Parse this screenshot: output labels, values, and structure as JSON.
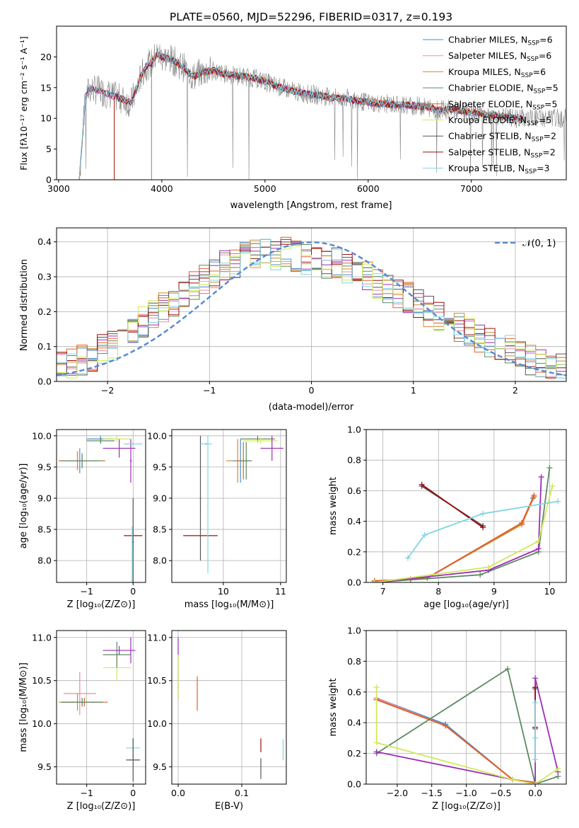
{
  "title": "PLATE=0560, MJD=52296, FIBERID=0317, z=0.193",
  "models": [
    {
      "name": "Chabrier MILES",
      "n": "6",
      "color": "#4a8ec8"
    },
    {
      "name": "Salpeter MILES",
      "n": "6",
      "color": "#e88aa6"
    },
    {
      "name": "Kroupa MILES",
      "n": "6",
      "color": "#d0892e"
    },
    {
      "name": "Chabrier ELODIE",
      "n": "5",
      "color": "#5d8a63"
    },
    {
      "name": "Salpeter ELODIE",
      "n": "5",
      "color": "#e0602a"
    },
    {
      "name": "Kroupa ELODIE",
      "n": "5",
      "color": "#9b2fb4"
    },
    {
      "name": "Chabrier STELIB",
      "n": "2",
      "color": "#555555"
    },
    {
      "name": "Salpeter STELIB",
      "n": "2",
      "color": "#9b0d0d"
    },
    {
      "name": "Kroupa STELIB",
      "n": "3",
      "color": "#7fd6e0"
    }
  ],
  "extra_colors": {
    "kroupa_elodie_legend": "#d2e85a",
    "gaussian": "#5a8ad0",
    "data": "#888888"
  },
  "chart_data": [
    {
      "type": "line",
      "id": "spectrum",
      "xlabel": "wavelength [Angstrom, rest frame]",
      "ylabel": "Flux [fλ10⁻¹⁷ erg cm⁻² s⁻¹ A⁻¹]",
      "xlim": [
        2980,
        7920
      ],
      "ylim": [
        0,
        25
      ],
      "xticks": [
        "3000",
        "4000",
        "5000",
        "6000",
        "7000"
      ],
      "yticks": [
        "0",
        "5",
        "10",
        "15",
        "20"
      ],
      "continuum": {
        "x": [
          3200,
          3260,
          3300,
          3400,
          3500,
          3600,
          3700,
          3750,
          3800,
          3850,
          3900,
          3950,
          4000,
          4100,
          4200,
          4300,
          4400,
          4500,
          4600,
          4700,
          4800,
          4900,
          5000,
          5100,
          5200,
          5300,
          5400,
          5500,
          5600,
          5700,
          5800,
          5900,
          6000,
          6100,
          6200,
          6300,
          6400,
          6500,
          6600,
          6700,
          6800,
          6900,
          7000,
          7100,
          7200,
          7300,
          7400
        ],
        "y": [
          0,
          13.5,
          14.8,
          14.5,
          13.8,
          13.2,
          12.5,
          14.5,
          17,
          18.5,
          19,
          20.5,
          20,
          19.5,
          18.5,
          16.8,
          17.5,
          17.8,
          17.2,
          17,
          16.8,
          16.5,
          16,
          15.3,
          14.8,
          14.3,
          14,
          13.8,
          13.5,
          13.3,
          13.2,
          12.8,
          12.6,
          12.4,
          12.3,
          12.2,
          12.1,
          12,
          11.7,
          11.3,
          11.5,
          11.2,
          11,
          10.8,
          10.5,
          10.3,
          10
        ]
      },
      "model_cutoffs": [
        3200,
        3200,
        3540,
        3900,
        3200,
        3200,
        3200,
        3540,
        3200
      ]
    },
    {
      "type": "line",
      "id": "residual-histogram",
      "xlabel": "(data-model)/error",
      "ylabel": "Normed distribution",
      "xlim": [
        -2.5,
        2.5
      ],
      "ylim": [
        0,
        0.44
      ],
      "xticks": [
        "−2",
        "−1",
        "0",
        "1",
        "2"
      ],
      "yticks": [
        "0.0",
        "0.1",
        "0.2",
        "0.3",
        "0.4"
      ],
      "legend": "𝒩(0, 1)",
      "bin_width": 0.1,
      "hist_centers": [
        -2.45,
        -2.35,
        -2.25,
        -2.15,
        -2.05,
        -1.95,
        -1.85,
        -1.75,
        -1.65,
        -1.55,
        -1.45,
        -1.35,
        -1.25,
        -1.15,
        -1.05,
        -0.95,
        -0.85,
        -0.75,
        -0.65,
        -0.55,
        -0.45,
        -0.35,
        -0.25,
        -0.15,
        -0.05,
        0.05,
        0.15,
        0.25,
        0.35,
        0.45,
        0.55,
        0.65,
        0.75,
        0.85,
        0.95,
        1.05,
        1.15,
        1.25,
        1.35,
        1.45,
        1.55,
        1.65,
        1.75,
        1.85,
        1.95,
        2.05,
        2.15,
        2.25,
        2.35,
        2.45
      ],
      "hist_base": [
        0.04,
        0.05,
        0.06,
        0.07,
        0.09,
        0.1,
        0.12,
        0.14,
        0.17,
        0.19,
        0.21,
        0.23,
        0.25,
        0.27,
        0.29,
        0.31,
        0.33,
        0.34,
        0.36,
        0.37,
        0.38,
        0.36,
        0.37,
        0.36,
        0.35,
        0.35,
        0.33,
        0.34,
        0.32,
        0.31,
        0.3,
        0.28,
        0.27,
        0.25,
        0.24,
        0.22,
        0.2,
        0.19,
        0.17,
        0.15,
        0.14,
        0.12,
        0.11,
        0.1,
        0.09,
        0.07,
        0.06,
        0.05,
        0.05,
        0.04
      ]
    },
    {
      "type": "scatter",
      "id": "age-vs-metallicity",
      "xlabel": "Z [log₁₀(Z/Z⊙)]",
      "ylabel": "age  [log₁₀(age/yr)]",
      "xlim": [
        -1.65,
        0.27
      ],
      "ylim": [
        7.65,
        10.1
      ],
      "xticks": [
        -1,
        0
      ],
      "yticks": [
        8.0,
        8.5,
        9.0,
        9.5,
        10.0
      ],
      "points": [
        {
          "x": -1.2,
          "y": 9.6,
          "xerr": 0.4,
          "yerr": 0.15,
          "c": 1
        },
        {
          "x": -1.2,
          "y": 9.6,
          "xerr": 0.4,
          "yerr": 0.15,
          "c": 2
        },
        {
          "x": -1.15,
          "y": 9.6,
          "xerr": 0.4,
          "yerr": 0.2,
          "c": 0
        },
        {
          "x": -1.1,
          "y": 9.6,
          "xerr": 0.5,
          "yerr": 0.1,
          "c": 4
        },
        {
          "x": -1.1,
          "y": 9.6,
          "xerr": 0.45,
          "yerr": 0.12,
          "c": 3
        },
        {
          "x": -0.7,
          "y": 9.95,
          "xerr": 0.3,
          "yerr": 0.05,
          "c": 0
        },
        {
          "x": -0.7,
          "y": 9.92,
          "xerr": 0.3,
          "yerr": 0.05,
          "c": 3
        },
        {
          "x": -0.3,
          "y": 9.8,
          "xerr": 0.35,
          "yerr": 0.15,
          "c": 5
        },
        {
          "x": -0.05,
          "y": 9.6,
          "xerr": 0.02,
          "yerr": 0.35,
          "c": 5
        },
        {
          "x": -0.35,
          "y": 9.95,
          "xerr": 0.3,
          "yerr": 0.05,
          "c": 9
        },
        {
          "x": 0.0,
          "y": 9.87,
          "xerr": 0.2,
          "yerr": 0.02,
          "c": 8
        },
        {
          "x": 0.0,
          "y": 8.4,
          "xerr": 0.2,
          "yerr": 0.01,
          "c": 7
        },
        {
          "x": 0.0,
          "y": 8.3,
          "xerr": 0.02,
          "yerr": 0.7,
          "c": 6
        },
        {
          "x": -0.02,
          "y": 8.1,
          "xerr": 0.01,
          "yerr": 0.45,
          "c": 8
        }
      ]
    },
    {
      "type": "scatter",
      "id": "age-vs-mass",
      "xlabel": "mass [log₁₀(M/M⊙)]",
      "ylabel": "",
      "xlim": [
        9.1,
        11.1
      ],
      "ylim": [
        7.65,
        10.1
      ],
      "xticks": [
        10,
        11
      ],
      "yticks": [
        8.0,
        8.5,
        9.0,
        9.5,
        10.0
      ],
      "points": [
        {
          "x": 9.6,
          "y": 8.4,
          "xerr": 0.3,
          "yerr": 0.01,
          "c": 7
        },
        {
          "x": 9.6,
          "y": 9.0,
          "xerr": 0.01,
          "yerr": 1.0,
          "c": 6
        },
        {
          "x": 9.7,
          "y": 9.87,
          "xerr": 0.1,
          "yerr": 0.02,
          "c": 8
        },
        {
          "x": 9.73,
          "y": 8.9,
          "xerr": 0.01,
          "yerr": 1.1,
          "c": 8
        },
        {
          "x": 10.25,
          "y": 9.6,
          "xerr": 0.2,
          "yerr": 0.35,
          "c": 2
        },
        {
          "x": 10.3,
          "y": 9.6,
          "xerr": 0.15,
          "yerr": 0.35,
          "c": 0
        },
        {
          "x": 10.35,
          "y": 9.6,
          "xerr": 0.15,
          "yerr": 0.3,
          "c": 4
        },
        {
          "x": 10.4,
          "y": 9.6,
          "xerr": 0.1,
          "yerr": 0.3,
          "c": 3
        },
        {
          "x": 10.6,
          "y": 9.95,
          "xerr": 0.3,
          "yerr": 0.05,
          "c": 3
        },
        {
          "x": 10.65,
          "y": 9.92,
          "xerr": 0.3,
          "yerr": 0.05,
          "c": 9
        },
        {
          "x": 10.85,
          "y": 9.8,
          "xerr": 0.2,
          "yerr": 0.2,
          "c": 5
        }
      ]
    },
    {
      "type": "line",
      "id": "weight-vs-age",
      "xlabel": "age  [log₁₀(age/yr)]",
      "ylabel": "mass weight",
      "xlim": [
        6.7,
        10.3
      ],
      "ylim": [
        0,
        1.0
      ],
      "xticks": [
        7,
        8,
        9,
        10
      ],
      "yticks": [
        0.0,
        0.2,
        0.4,
        0.6,
        0.8,
        1.0
      ],
      "series": [
        {
          "c": 0,
          "x": [
            6.85,
            7.5,
            7.8,
            9.5,
            9.7
          ],
          "y": [
            0.01,
            0.02,
            0.03,
            0.38,
            0.55
          ]
        },
        {
          "c": 1,
          "x": [
            6.85,
            7.5,
            7.8,
            9.5,
            9.72
          ],
          "y": [
            0.01,
            0.02,
            0.03,
            0.38,
            0.56
          ]
        },
        {
          "c": 2,
          "x": [
            6.85,
            7.5,
            7.8,
            9.5,
            9.72
          ],
          "y": [
            0.01,
            0.02,
            0.03,
            0.38,
            0.56
          ]
        },
        {
          "c": 4,
          "x": [
            6.85,
            7.5,
            7.8,
            9.5,
            9.72
          ],
          "y": [
            0.01,
            0.02,
            0.03,
            0.39,
            0.57
          ]
        },
        {
          "c": 3,
          "x": [
            6.85,
            8.75,
            9.8,
            10.0
          ],
          "y": [
            0.0,
            0.05,
            0.2,
            0.75
          ]
        },
        {
          "c": 5,
          "x": [
            6.85,
            8.9,
            9.8,
            9.85
          ],
          "y": [
            0.0,
            0.08,
            0.22,
            0.69
          ]
        },
        {
          "c": 9,
          "x": [
            6.85,
            8.9,
            9.8,
            10.05
          ],
          "y": [
            0.0,
            0.1,
            0.27,
            0.63
          ]
        },
        {
          "c": 6,
          "x": [
            7.7,
            8.8
          ],
          "y": [
            0.63,
            0.37
          ]
        },
        {
          "c": 7,
          "x": [
            7.7,
            8.8
          ],
          "y": [
            0.64,
            0.36
          ]
        },
        {
          "c": 8,
          "x": [
            7.45,
            7.75,
            8.8,
            10.15
          ],
          "y": [
            0.16,
            0.31,
            0.45,
            0.53
          ]
        }
      ]
    },
    {
      "type": "scatter",
      "id": "mass-vs-metallicity",
      "xlabel": "Z [log₁₀(Z/Z⊙)]",
      "ylabel": "mass [log₁₀(M/M⊙)]",
      "xlim": [
        -1.65,
        0.27
      ],
      "ylim": [
        9.3,
        11.08
      ],
      "xticks": [
        -1,
        0
      ],
      "yticks": [
        9.5,
        10.0,
        10.5,
        11.0
      ],
      "points": [
        {
          "x": -1.15,
          "y": 10.35,
          "xerr": 0.35,
          "yerr": 0.25,
          "c": 1
        },
        {
          "x": -1.2,
          "y": 10.25,
          "xerr": 0.4,
          "yerr": 0.1,
          "c": 2
        },
        {
          "x": -1.1,
          "y": 10.25,
          "xerr": 0.45,
          "yerr": 0.05,
          "c": 0
        },
        {
          "x": -1.05,
          "y": 10.25,
          "xerr": 0.5,
          "yerr": 0.05,
          "c": 4
        },
        {
          "x": -1.1,
          "y": 10.25,
          "xerr": 0.45,
          "yerr": 0.05,
          "c": 3
        },
        {
          "x": -0.35,
          "y": 10.65,
          "xerr": 0.3,
          "yerr": 0.15,
          "c": 9
        },
        {
          "x": -0.35,
          "y": 10.8,
          "xerr": 0.3,
          "yerr": 0.15,
          "c": 3
        },
        {
          "x": -0.3,
          "y": 10.85,
          "xerr": 0.35,
          "yerr": 0.05,
          "c": 5
        },
        {
          "x": -0.05,
          "y": 10.85,
          "xerr": 0.01,
          "yerr": 0.15,
          "c": 5
        },
        {
          "x": 0.0,
          "y": 9.72,
          "xerr": 0.15,
          "yerr": 0.12,
          "c": 8
        },
        {
          "x": 0.0,
          "y": 9.58,
          "xerr": 0.15,
          "yerr": 0.25,
          "c": 6
        }
      ]
    },
    {
      "type": "scatter",
      "id": "mass-vs-ebv",
      "xlabel": "E(B-V)",
      "ylabel": "",
      "xlim": [
        -0.01,
        0.17
      ],
      "ylim": [
        9.3,
        11.08
      ],
      "xticks": [
        0.0,
        0.1
      ],
      "yticks": [
        9.5,
        10.0,
        10.5,
        11.0
      ],
      "points": [
        {
          "x": 0.0,
          "y": 10.65,
          "xerr": 0.0,
          "yerr": 0.35,
          "c": 5
        },
        {
          "x": 0.0,
          "y": 10.55,
          "xerr": 0.0,
          "yerr": 0.25,
          "c": 9
        },
        {
          "x": 0.03,
          "y": 10.35,
          "xerr": 0.0,
          "yerr": 0.2,
          "c": 4
        },
        {
          "x": 0.13,
          "y": 9.75,
          "xerr": 0.0,
          "yerr": 0.08,
          "c": 7
        },
        {
          "x": 0.13,
          "y": 9.48,
          "xerr": 0.0,
          "yerr": 0.12,
          "c": 6
        },
        {
          "x": 0.165,
          "y": 9.7,
          "xerr": 0.0,
          "yerr": 0.12,
          "c": 8
        }
      ]
    },
    {
      "type": "line",
      "id": "weight-vs-metallicity",
      "xlabel": "Z [log₁₀(Z/Z⊙)]",
      "ylabel": "mass weight",
      "xlim": [
        -2.45,
        0.45
      ],
      "ylim": [
        0,
        1.0
      ],
      "xticks": [
        -2.0,
        -1.5,
        -1.0,
        -0.5,
        0.0
      ],
      "yticks": [
        0.0,
        0.2,
        0.4,
        0.6,
        0.8,
        1.0
      ],
      "series": [
        {
          "c": 0,
          "x": [
            -2.3,
            -1.3,
            -0.33,
            0.0
          ],
          "y": [
            0.56,
            0.39,
            0.03,
            0.01
          ]
        },
        {
          "c": 1,
          "x": [
            -2.3,
            -1.3,
            -0.33,
            0.0
          ],
          "y": [
            0.56,
            0.38,
            0.03,
            0.01
          ]
        },
        {
          "c": 2,
          "x": [
            -2.3,
            -1.3,
            -0.33,
            0.0
          ],
          "y": [
            0.55,
            0.38,
            0.03,
            0.01
          ]
        },
        {
          "c": 4,
          "x": [
            -2.3,
            -1.3,
            -0.33,
            0.0
          ],
          "y": [
            0.55,
            0.38,
            0.03,
            0.01
          ]
        },
        {
          "c": 3,
          "x": [
            -2.3,
            -0.4,
            0.0,
            0.33
          ],
          "y": [
            0.2,
            0.75,
            0.0,
            0.05
          ]
        },
        {
          "c": 5,
          "x": [
            -2.3,
            -0.33,
            0.0,
            0.0,
            0.33
          ],
          "y": [
            0.21,
            0.03,
            0.0,
            0.69,
            0.08
          ]
        },
        {
          "c": 9,
          "x": [
            -2.3,
            -2.3,
            -0.33,
            0.0,
            0.33
          ],
          "y": [
            0.63,
            0.27,
            0.03,
            0.0,
            0.1
          ]
        },
        {
          "c": 6,
          "x": [
            0.0,
            0.0
          ],
          "y": [
            0.62,
            0.36
          ]
        },
        {
          "c": 7,
          "x": [
            0.0,
            0.0
          ],
          "y": [
            0.63,
            0.37
          ]
        },
        {
          "c": 8,
          "x": [
            0.0,
            0.0,
            0.0
          ],
          "y": [
            0.53,
            0.3,
            0.16
          ]
        }
      ]
    }
  ]
}
